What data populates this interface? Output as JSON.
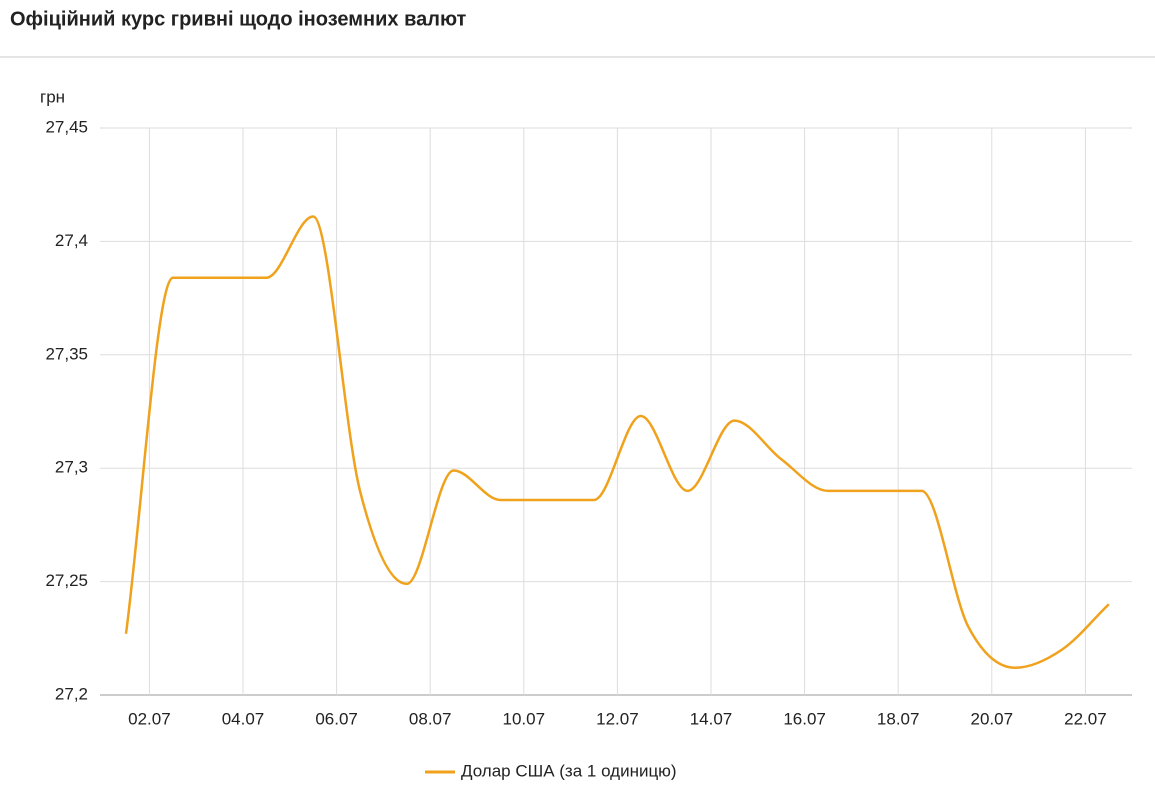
{
  "chart_data": {
    "type": "line",
    "title": "Офіційний курс гривні щодо іноземних валют",
    "y_label": "грн",
    "categories": [
      null,
      "02.07",
      null,
      "04.07",
      null,
      "06.07",
      null,
      "08.07",
      null,
      "10.07",
      null,
      "12.07",
      null,
      "14.07",
      null,
      "16.07",
      null,
      "18.07",
      null,
      "20.07",
      null,
      "22.07"
    ],
    "series": [
      {
        "name": "Долар США (за 1 одиницю)",
        "color": "#f0a21c",
        "values": [
          27.227,
          27.384,
          27.384,
          27.384,
          27.411,
          27.29,
          27.249,
          27.299,
          27.286,
          27.286,
          27.286,
          27.323,
          27.29,
          27.321,
          27.304,
          27.29,
          27.29,
          27.29,
          27.23,
          27.212,
          27.22,
          27.24
        ]
      }
    ],
    "ylim": [
      27.2,
      27.45
    ],
    "yticks": [
      {
        "value": 27.2,
        "label": "27,2"
      },
      {
        "value": 27.25,
        "label": "27,25"
      },
      {
        "value": 27.3,
        "label": "27,3"
      },
      {
        "value": 27.35,
        "label": "27,35"
      },
      {
        "value": 27.4,
        "label": "27,4"
      },
      {
        "value": 27.45,
        "label": "27,45"
      }
    ],
    "grid": true,
    "legend": "bottom"
  }
}
